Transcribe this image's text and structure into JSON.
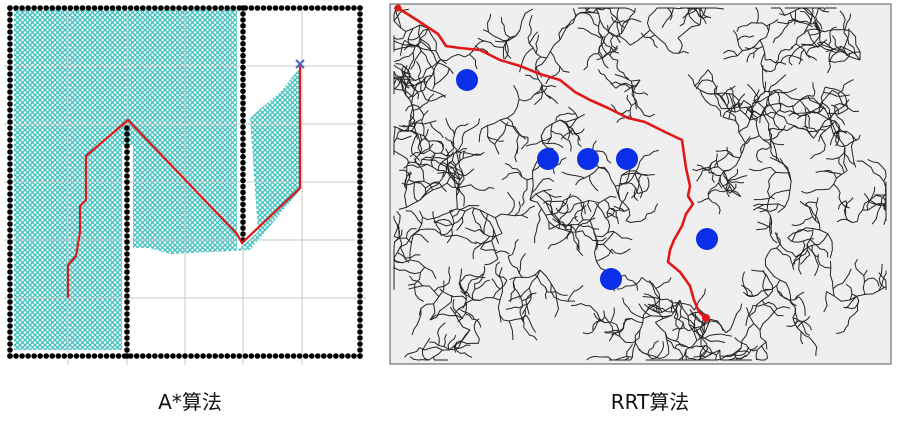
{
  "captions": {
    "astar": "A*算法",
    "rrt": "RRT算法"
  },
  "colors": {
    "explored": "#3bbfbf",
    "wall": "#000000",
    "path": "#e01818",
    "grid": "#c8c8c8",
    "tree": "#222222",
    "obstacle": "#0a2fe6",
    "rrt_bg": "#efefef",
    "goal_marker": "#4a68c8"
  },
  "icons": {
    "goal": "x-marker-icon",
    "start": "dot-marker-icon"
  }
}
